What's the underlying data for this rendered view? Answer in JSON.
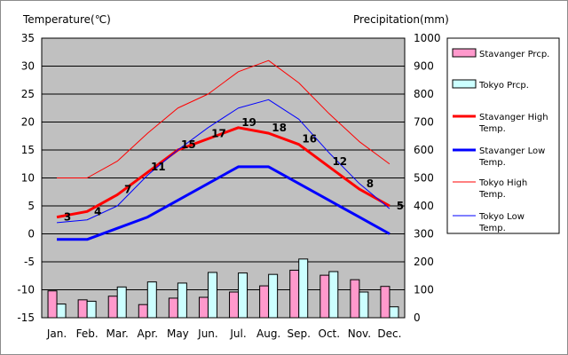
{
  "chart_data": {
    "type": "bar",
    "left_axis_title": "Temperature(℃)",
    "right_axis_title": "Precipitation(mm)",
    "categories": [
      "Jan.",
      "Feb.",
      "Mar.",
      "Apr.",
      "May",
      "Jun.",
      "Jul.",
      "Aug.",
      "Sep.",
      "Oct.",
      "Nov.",
      "Dec."
    ],
    "left_axis": {
      "min": -15,
      "max": 35,
      "step": 5,
      "ticks": [
        "35",
        "30",
        "25",
        "20",
        "15",
        "10",
        "5",
        "0",
        "-5",
        "-10",
        "-15"
      ]
    },
    "right_axis": {
      "min": 0,
      "max": 1000,
      "step": 100,
      "ticks": [
        "1000",
        "900",
        "800",
        "700",
        "600",
        "500",
        "400",
        "300",
        "200",
        "100",
        "0"
      ]
    },
    "grid": true,
    "plot_background": "#c0c0c0",
    "legend_position": "right",
    "series": [
      {
        "name": "Stavanger Prcp.",
        "kind": "bar",
        "axis": "right",
        "color": "#ff99cc",
        "values": [
          96,
          64,
          77,
          47,
          70,
          73,
          92,
          114,
          170,
          152,
          136,
          112
        ]
      },
      {
        "name": "Tokyo Prcp.",
        "kind": "bar",
        "axis": "right",
        "color": "#ccffff",
        "values": [
          49,
          59,
          110,
          128,
          124,
          162,
          160,
          155,
          210,
          165,
          92,
          39
        ]
      },
      {
        "name": "Stavanger High Temp.",
        "kind": "line",
        "axis": "left",
        "color": "#ff0000",
        "width": 3,
        "values": [
          3,
          4,
          7,
          11,
          15,
          17,
          19,
          18,
          16,
          12,
          8,
          5
        ],
        "labels": [
          "3",
          "4",
          "7",
          "11",
          "15",
          "17",
          "19",
          "18",
          "16",
          "12",
          "8",
          "5"
        ]
      },
      {
        "name": "Stavanger Low Temp.",
        "kind": "line",
        "axis": "left",
        "color": "#0000ff",
        "width": 3,
        "values": [
          -1,
          -1,
          1,
          3,
          6,
          9,
          12,
          12,
          9,
          6,
          3,
          0
        ]
      },
      {
        "name": "Tokyo High Temp.",
        "kind": "line",
        "axis": "left",
        "color": "#ff0000",
        "width": 1,
        "values": [
          10,
          10,
          13,
          18,
          22.5,
          25,
          29,
          31,
          27,
          21.5,
          16.5,
          12.5
        ]
      },
      {
        "name": "Tokyo Low Temp.",
        "kind": "line",
        "axis": "left",
        "color": "#0000ff",
        "width": 1,
        "values": [
          2,
          2.5,
          5,
          10.5,
          15,
          19,
          22.5,
          24,
          20.5,
          14.5,
          9,
          4.5
        ]
      }
    ],
    "legend": [
      {
        "label_lines": [
          "Stavanger Prcp."
        ],
        "series": 0
      },
      {
        "label_lines": [
          "Tokyo Prcp."
        ],
        "series": 1
      },
      {
        "label_lines": [
          "Stavanger High",
          "Temp."
        ],
        "series": 2
      },
      {
        "label_lines": [
          "Stavanger Low",
          "Temp."
        ],
        "series": 3
      },
      {
        "label_lines": [
          "Tokyo High",
          "Temp."
        ],
        "series": 4
      },
      {
        "label_lines": [
          "Tokyo Low",
          "Temp."
        ],
        "series": 5
      }
    ]
  }
}
